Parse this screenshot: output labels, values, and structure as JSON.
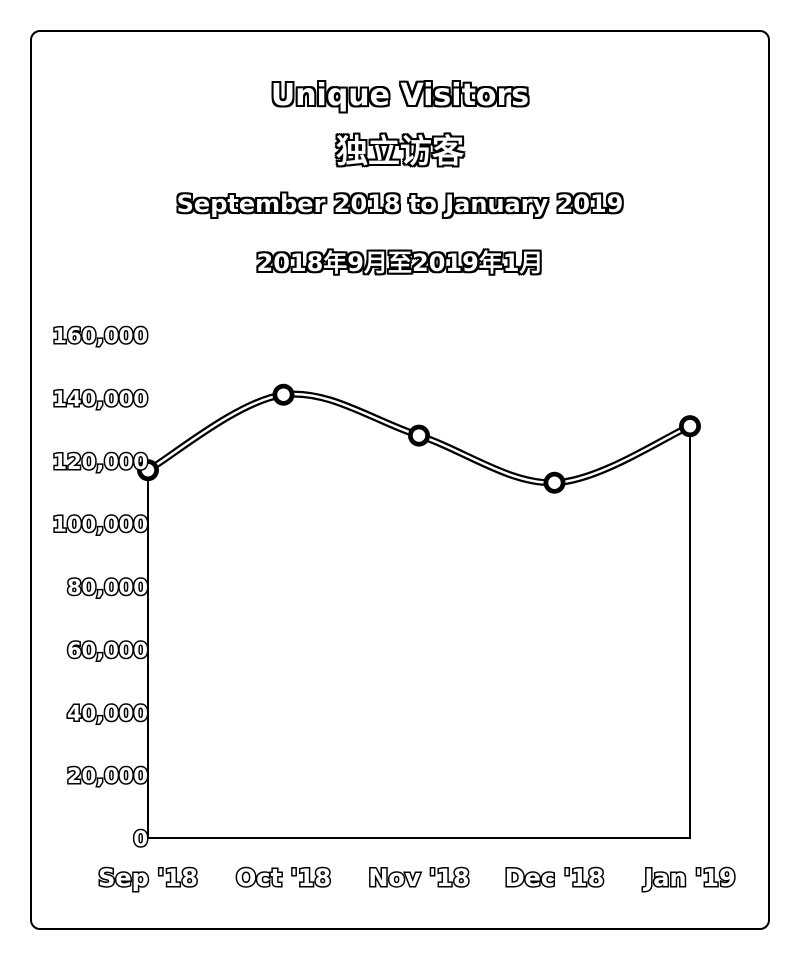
{
  "chart_data": {
    "type": "line",
    "title": "Unique Visitors",
    "title_zh": "独立访客",
    "subtitle": "September 2018 to January 2019",
    "subtitle_zh": "2018年9月至2019年1月",
    "categories": [
      "Sep '18",
      "Oct '18",
      "Nov '18",
      "Dec '18",
      "Jan '19"
    ],
    "series": [
      {
        "name": "",
        "values": [
          117000,
          141000,
          128000,
          113000,
          131000
        ]
      }
    ],
    "ylim": [
      0,
      160000
    ],
    "yticks": [
      0,
      20000,
      40000,
      60000,
      80000,
      100000,
      120000,
      140000,
      160000
    ],
    "ytick_labels": [
      "0",
      "20,000",
      "40,000",
      "60,000",
      "80,000",
      "100,000",
      "120,000",
      "140,000",
      "160,000"
    ],
    "grid": false,
    "line_color": "#000000",
    "marker_fill": "#ffffff"
  }
}
